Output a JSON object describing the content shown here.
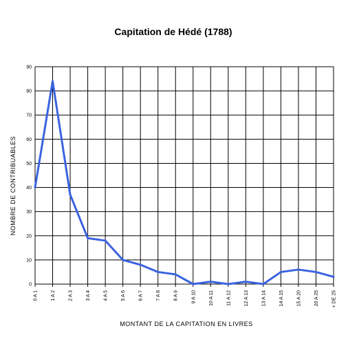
{
  "chart_data": {
    "type": "line",
    "title": "Capitation de Hédé (1788)",
    "xlabel": "MONTANT DE LA CAPITATION EN LIVRES",
    "ylabel": "NOMBRE DE CONTRIBUABLES",
    "categories": [
      "0 A 1",
      "1 A 2",
      "2 A 3",
      "3 A 4",
      "4 A 5",
      "5 A 6",
      "6 A 7",
      "7 A 8",
      "8 A 9",
      "9 A 10",
      "10 A 11",
      "11 A 12",
      "12 A 13",
      "13 A 14",
      "14 A 15",
      "15 A 20",
      "20 A 25",
      "+ DE 25"
    ],
    "values": [
      40,
      84,
      37,
      19,
      18,
      10,
      8,
      5,
      4,
      0,
      1,
      0,
      1,
      0,
      5,
      6,
      5,
      3
    ],
    "ylim": [
      0,
      90
    ],
    "yticks": [
      0,
      10,
      20,
      30,
      40,
      50,
      60,
      70,
      80,
      90
    ],
    "grid": true,
    "line_color": "#3a63e0"
  }
}
